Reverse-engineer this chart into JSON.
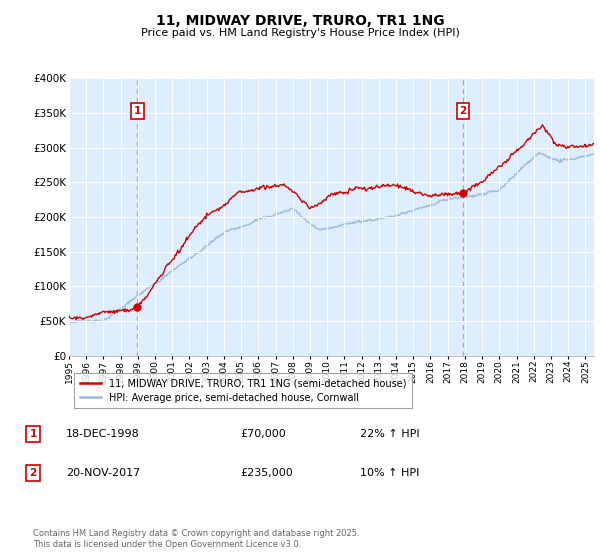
{
  "title": "11, MIDWAY DRIVE, TRURO, TR1 1NG",
  "subtitle": "Price paid vs. HM Land Registry's House Price Index (HPI)",
  "ylim": [
    0,
    400000
  ],
  "yticks": [
    0,
    50000,
    100000,
    150000,
    200000,
    250000,
    300000,
    350000,
    400000
  ],
  "ytick_labels": [
    "£0",
    "£50K",
    "£100K",
    "£150K",
    "£200K",
    "£250K",
    "£300K",
    "£350K",
    "£400K"
  ],
  "sale1_date": 1998.97,
  "sale1_price": 70000,
  "sale1_label": "1",
  "sale2_date": 2017.88,
  "sale2_price": 235000,
  "sale2_label": "2",
  "red_color": "#cc0000",
  "blue_color": "#99bbdd",
  "vline_color": "#ee8888",
  "legend1": "11, MIDWAY DRIVE, TRURO, TR1 1NG (semi-detached house)",
  "legend2": "HPI: Average price, semi-detached house, Cornwall",
  "annotation1_date": "18-DEC-1998",
  "annotation1_price": "£70,000",
  "annotation1_hpi": "22% ↑ HPI",
  "annotation2_date": "20-NOV-2017",
  "annotation2_price": "£235,000",
  "annotation2_hpi": "10% ↑ HPI",
  "footer": "Contains HM Land Registry data © Crown copyright and database right 2025.\nThis data is licensed under the Open Government Licence v3.0.",
  "bg_color": "#ffffff",
  "plot_bg_color": "#ddeeff",
  "grid_color": "#ffffff"
}
